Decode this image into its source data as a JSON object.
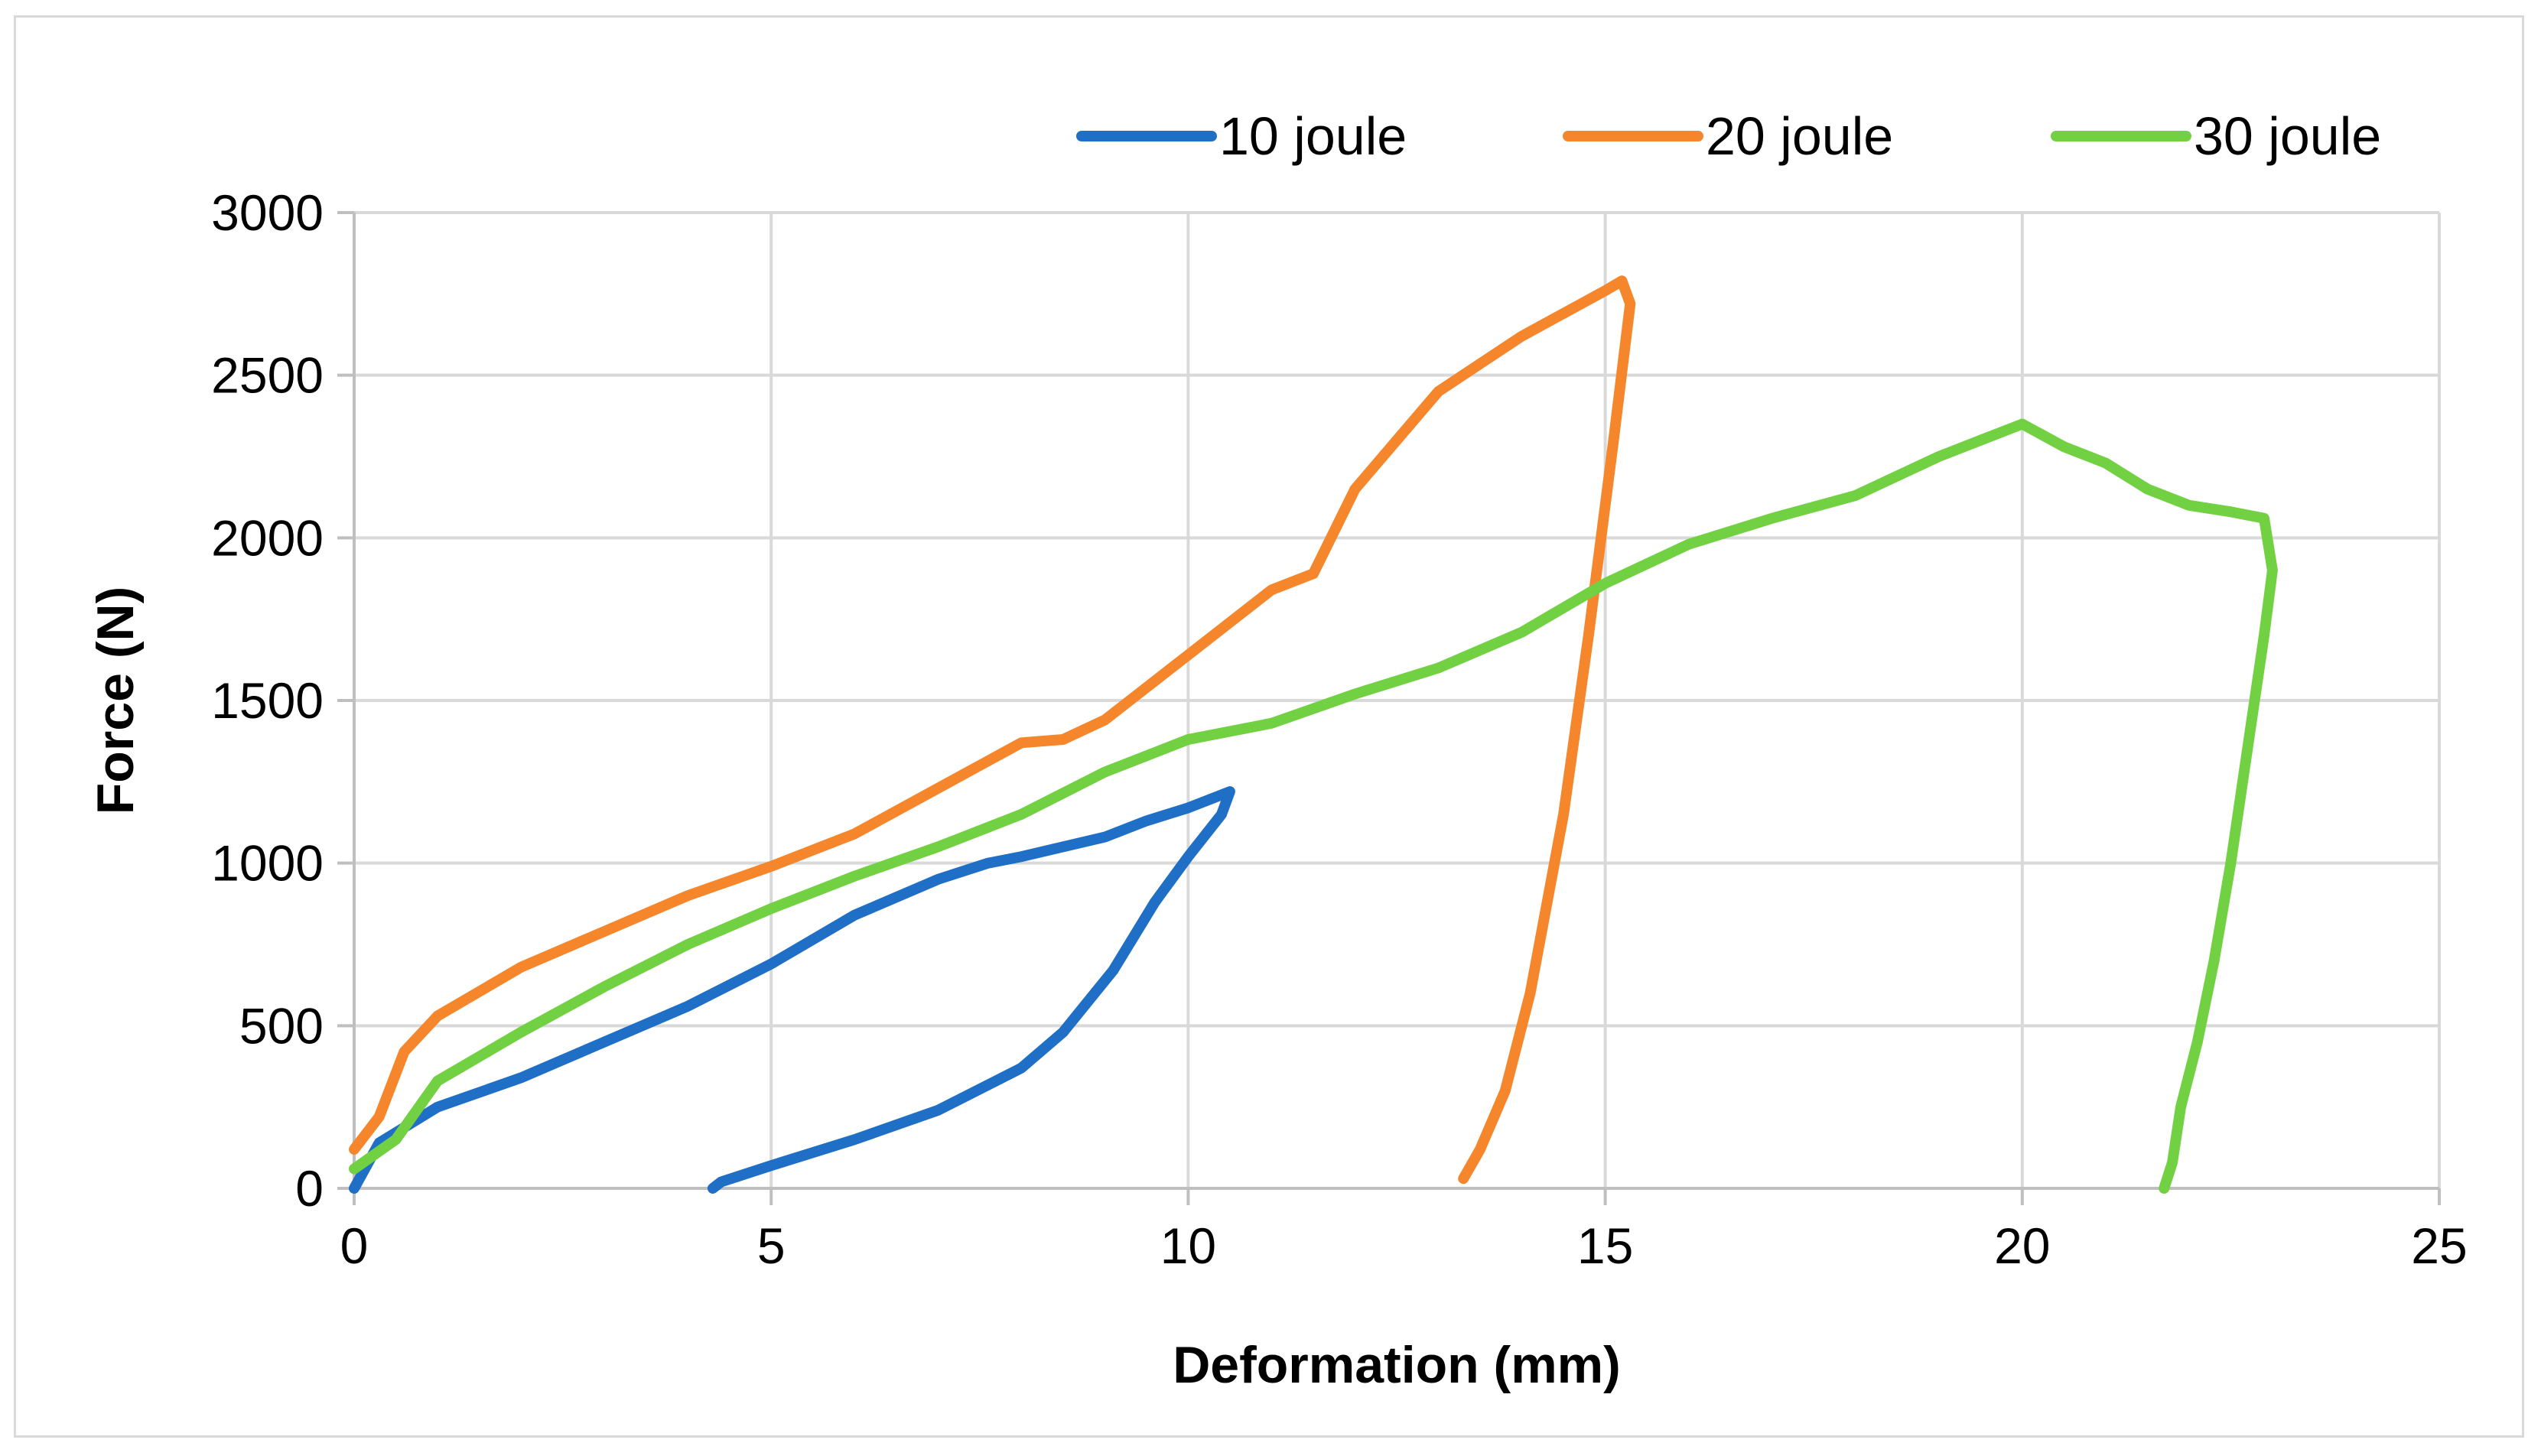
{
  "chart_data": {
    "type": "line",
    "title": "",
    "xlabel": "Deformation (mm)",
    "ylabel": "Force (N)",
    "xlim": [
      0,
      25
    ],
    "ylim": [
      0,
      3000
    ],
    "x_ticks": [
      0,
      5,
      10,
      15,
      20,
      25
    ],
    "y_ticks": [
      0,
      500,
      1000,
      1500,
      2000,
      2500,
      3000
    ],
    "grid": true,
    "legend_position": "top-right",
    "series": [
      {
        "name": "10 joule",
        "color": "#1f6fc6",
        "points": [
          [
            0,
            0
          ],
          [
            0.3,
            140
          ],
          [
            1,
            250
          ],
          [
            2,
            340
          ],
          [
            3,
            450
          ],
          [
            4,
            560
          ],
          [
            5,
            690
          ],
          [
            6,
            840
          ],
          [
            7,
            950
          ],
          [
            7.6,
            1000
          ],
          [
            8,
            1020
          ],
          [
            9,
            1080
          ],
          [
            9.5,
            1130
          ],
          [
            10,
            1170
          ],
          [
            10.5,
            1220
          ],
          [
            10.4,
            1150
          ],
          [
            10,
            1020
          ],
          [
            9.6,
            880
          ],
          [
            9.1,
            670
          ],
          [
            8.5,
            480
          ],
          [
            8,
            370
          ],
          [
            7,
            240
          ],
          [
            6,
            150
          ],
          [
            5,
            70
          ],
          [
            4.4,
            20
          ],
          [
            4.3,
            0
          ]
        ]
      },
      {
        "name": "20 joule",
        "color": "#f5862b",
        "points": [
          [
            0,
            120
          ],
          [
            0.3,
            220
          ],
          [
            0.6,
            420
          ],
          [
            1,
            530
          ],
          [
            2,
            680
          ],
          [
            3,
            790
          ],
          [
            4,
            900
          ],
          [
            5,
            990
          ],
          [
            6,
            1090
          ],
          [
            7,
            1230
          ],
          [
            8,
            1370
          ],
          [
            8.5,
            1380
          ],
          [
            9,
            1440
          ],
          [
            10,
            1640
          ],
          [
            11,
            1840
          ],
          [
            11.5,
            1890
          ],
          [
            12,
            2150
          ],
          [
            13,
            2450
          ],
          [
            14,
            2620
          ],
          [
            15,
            2760
          ],
          [
            15.2,
            2790
          ],
          [
            15.3,
            2720
          ],
          [
            15.1,
            2300
          ],
          [
            14.8,
            1700
          ],
          [
            14.5,
            1150
          ],
          [
            14.1,
            600
          ],
          [
            13.8,
            300
          ],
          [
            13.5,
            120
          ],
          [
            13.3,
            30
          ]
        ]
      },
      {
        "name": "30 joule",
        "color": "#72d143",
        "points": [
          [
            0,
            60
          ],
          [
            0.5,
            150
          ],
          [
            1,
            330
          ],
          [
            2,
            480
          ],
          [
            3,
            620
          ],
          [
            4,
            750
          ],
          [
            5,
            860
          ],
          [
            6,
            960
          ],
          [
            7,
            1050
          ],
          [
            8,
            1150
          ],
          [
            9,
            1280
          ],
          [
            10,
            1380
          ],
          [
            11,
            1430
          ],
          [
            12,
            1520
          ],
          [
            13,
            1600
          ],
          [
            14,
            1710
          ],
          [
            15,
            1860
          ],
          [
            16,
            1980
          ],
          [
            17,
            2060
          ],
          [
            18,
            2130
          ],
          [
            19,
            2250
          ],
          [
            19.5,
            2300
          ],
          [
            20,
            2350
          ],
          [
            20.5,
            2280
          ],
          [
            21,
            2230
          ],
          [
            21.5,
            2150
          ],
          [
            22,
            2100
          ],
          [
            22.5,
            2080
          ],
          [
            22.9,
            2060
          ],
          [
            23,
            1900
          ],
          [
            22.9,
            1700
          ],
          [
            22.7,
            1350
          ],
          [
            22.5,
            1000
          ],
          [
            22.3,
            700
          ],
          [
            22.1,
            450
          ],
          [
            21.9,
            250
          ],
          [
            21.8,
            80
          ],
          [
            21.7,
            0
          ]
        ]
      }
    ]
  }
}
